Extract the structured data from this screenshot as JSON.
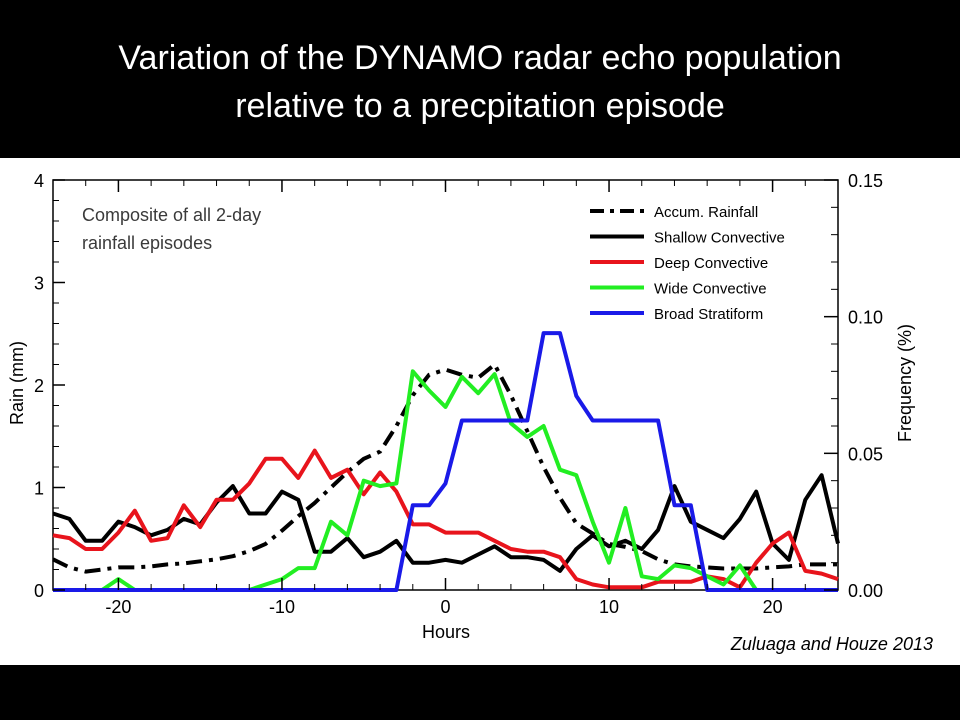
{
  "title": {
    "line1": "Variation of the DYNAMO radar echo population",
    "line2": "relative to a precpitation episode"
  },
  "citation": "Zuluaga and Houze 2013",
  "chart_data": {
    "type": "line",
    "title": "",
    "annotation_line1": "Composite of all 2-day",
    "annotation_line2": "rainfall episodes",
    "xlabel": "Hours",
    "ylabel_left": "Rain (mm)",
    "ylabel_right": "Frequency (%)",
    "xlim": [
      -24,
      24
    ],
    "ylim_left": [
      0,
      4
    ],
    "ylim_right": [
      0,
      0.15
    ],
    "xticks": [
      -20,
      -10,
      0,
      10,
      20
    ],
    "xtick_labels": [
      "-20",
      "-10",
      "0",
      "10",
      "20"
    ],
    "yticks_left": [
      0,
      1,
      2,
      3,
      4
    ],
    "ytick_labels_left": [
      "0",
      "1",
      "2",
      "3",
      "4"
    ],
    "yticks_right": [
      0,
      0.05,
      0.1,
      0.15
    ],
    "ytick_labels_right": [
      "0.00",
      "0.05",
      "0.10",
      "0.15"
    ],
    "legend_position": "top-right",
    "x": [
      -24,
      -23,
      -22,
      -21,
      -20,
      -19,
      -18,
      -17,
      -16,
      -15,
      -14,
      -13,
      -12,
      -11,
      -10,
      -9,
      -8,
      -7,
      -6,
      -5,
      -4,
      -3,
      -2,
      -1,
      0,
      1,
      2,
      3,
      4,
      5,
      6,
      7,
      8,
      9,
      10,
      11,
      12,
      13,
      14,
      15,
      16,
      17,
      18,
      19,
      20,
      21,
      22,
      23,
      24
    ],
    "series": [
      {
        "name": "Accum. Rainfall",
        "axis": "left",
        "color": "#000000",
        "style": "dashdot",
        "values": [
          0.3,
          0.22,
          0.18,
          0.2,
          0.22,
          0.22,
          0.23,
          0.25,
          0.26,
          0.28,
          0.3,
          0.33,
          0.38,
          0.45,
          0.58,
          0.72,
          0.85,
          1.0,
          1.15,
          1.28,
          1.35,
          1.6,
          1.9,
          2.1,
          2.15,
          2.1,
          2.07,
          2.2,
          1.9,
          1.55,
          1.2,
          0.9,
          0.65,
          0.55,
          0.45,
          0.42,
          0.38,
          0.3,
          0.25,
          0.23,
          0.22,
          0.21,
          0.21,
          0.21,
          0.22,
          0.23,
          0.25,
          0.25,
          0.25
        ]
      },
      {
        "name": "Shallow Convective",
        "axis": "right",
        "color": "#000000",
        "style": "solid",
        "values": [
          0.028,
          0.026,
          0.018,
          0.018,
          0.025,
          0.023,
          0.02,
          0.022,
          0.026,
          0.024,
          0.032,
          0.038,
          0.028,
          0.028,
          0.036,
          0.033,
          0.014,
          0.014,
          0.019,
          0.012,
          0.014,
          0.018,
          0.01,
          0.01,
          0.011,
          0.01,
          0.013,
          0.016,
          0.012,
          0.012,
          0.011,
          0.007,
          0.015,
          0.02,
          0.016,
          0.018,
          0.015,
          0.022,
          0.038,
          0.025,
          0.022,
          0.019,
          0.026,
          0.036,
          0.017,
          0.011,
          0.033,
          0.042,
          0.017
        ]
      },
      {
        "name": "Deep Convective",
        "axis": "right",
        "color": "#e8141c",
        "style": "solid",
        "values": [
          0.02,
          0.019,
          0.015,
          0.015,
          0.021,
          0.029,
          0.018,
          0.019,
          0.031,
          0.023,
          0.033,
          0.033,
          0.039,
          0.048,
          0.048,
          0.041,
          0.051,
          0.041,
          0.044,
          0.035,
          0.043,
          0.036,
          0.024,
          0.024,
          0.021,
          0.021,
          0.021,
          0.018,
          0.015,
          0.014,
          0.014,
          0.012,
          0.004,
          0.002,
          0.001,
          0.001,
          0.001,
          0.003,
          0.003,
          0.003,
          0.005,
          0.004,
          0.001,
          0.01,
          0.017,
          0.021,
          0.007,
          0.006,
          0.004
        ]
      },
      {
        "name": "Wide Convective",
        "axis": "right",
        "color": "#22ee22",
        "style": "solid",
        "values": [
          null,
          null,
          null,
          0.0,
          0.004,
          0.0,
          null,
          null,
          null,
          null,
          null,
          null,
          0.0,
          0.002,
          0.004,
          0.008,
          0.008,
          0.025,
          0.02,
          0.04,
          0.038,
          0.039,
          0.08,
          0.073,
          0.067,
          0.078,
          0.072,
          0.079,
          0.061,
          0.056,
          0.06,
          0.044,
          0.042,
          0.025,
          0.01,
          0.03,
          0.005,
          0.004,
          0.009,
          0.008,
          0.005,
          0.002,
          0.009,
          0.0,
          null,
          null,
          null,
          null,
          null
        ]
      },
      {
        "name": "Broad Stratiform",
        "axis": "right",
        "color": "#1a1ae8",
        "style": "solid",
        "values": [
          0.0,
          0.0,
          0.0,
          0.0,
          0.0,
          0.0,
          0.0,
          0.0,
          0.0,
          0.0,
          0.0,
          0.0,
          0.0,
          0.0,
          0.0,
          0.0,
          0.0,
          0.0,
          0.0,
          0.0,
          0.0,
          0.0,
          0.031,
          0.031,
          0.039,
          0.062,
          0.062,
          0.062,
          0.062,
          0.062,
          0.094,
          0.094,
          0.071,
          0.062,
          0.062,
          0.062,
          0.062,
          0.062,
          0.031,
          0.031,
          0.0,
          0.0,
          0.0,
          0.0,
          0.0,
          0.0,
          0.0,
          0.0,
          0.0
        ]
      }
    ]
  }
}
